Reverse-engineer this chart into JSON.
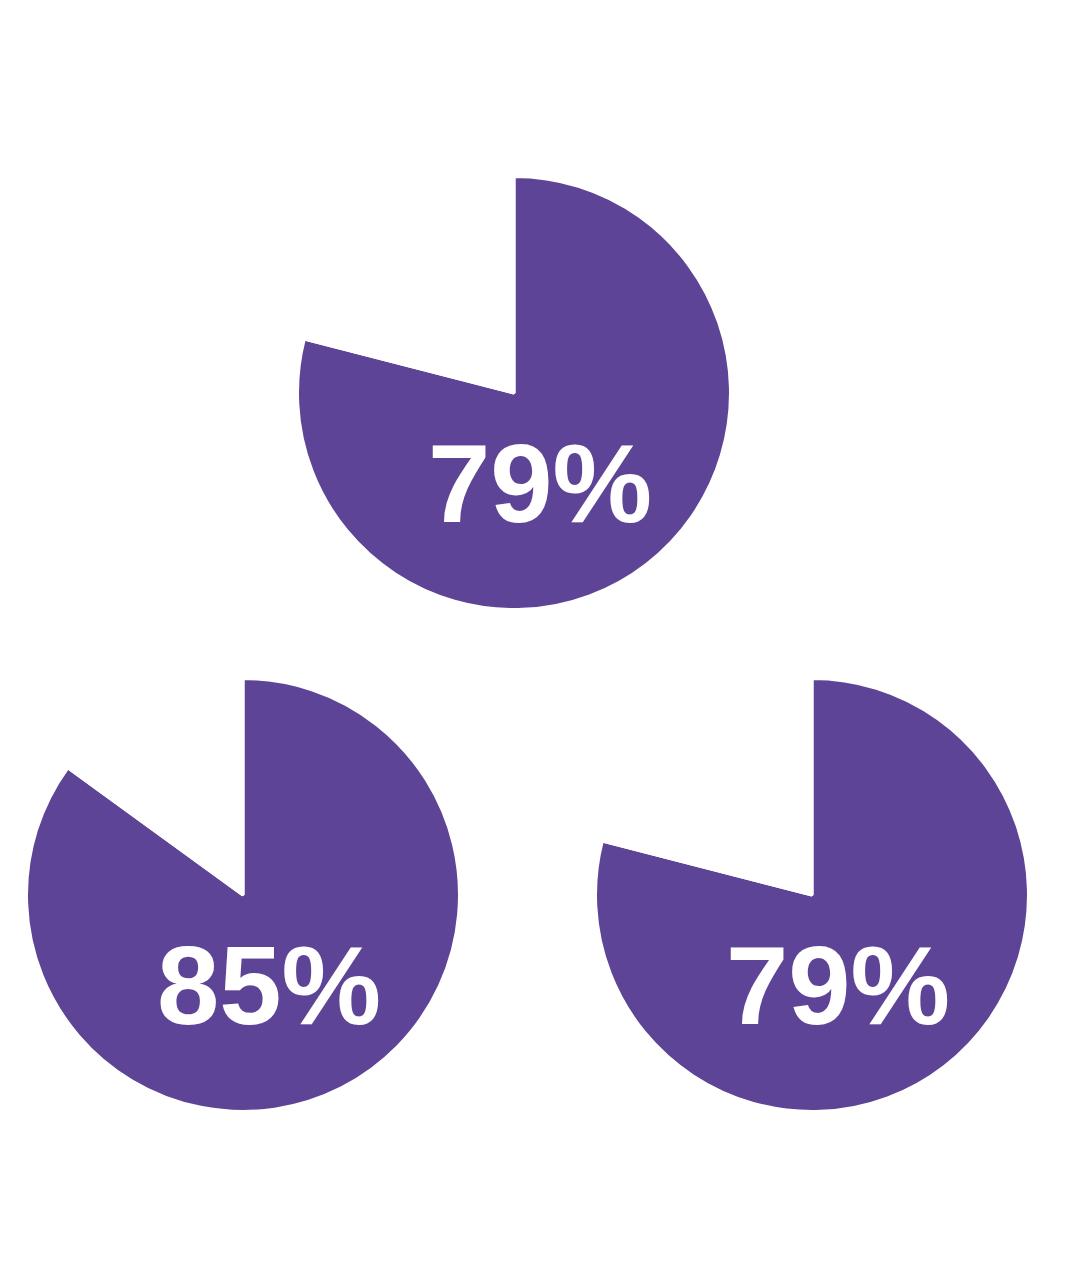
{
  "chart_data": [
    {
      "type": "pie",
      "categories": [
        null,
        null
      ],
      "values": [
        79,
        21
      ],
      "colors": [
        "#5e4496",
        "#ffffff"
      ],
      "value_labels": [
        "79%",
        null
      ]
    },
    {
      "type": "pie",
      "categories": [
        null,
        null
      ],
      "values": [
        85,
        15
      ],
      "colors": [
        "#5e4496",
        "#ffffff"
      ],
      "value_labels": [
        "85%",
        null
      ]
    },
    {
      "type": "pie",
      "categories": [
        null,
        null
      ],
      "values": [
        79,
        21
      ],
      "colors": [
        "#5e4496",
        "#ffffff"
      ],
      "value_labels": [
        "79%",
        null
      ]
    }
  ]
}
